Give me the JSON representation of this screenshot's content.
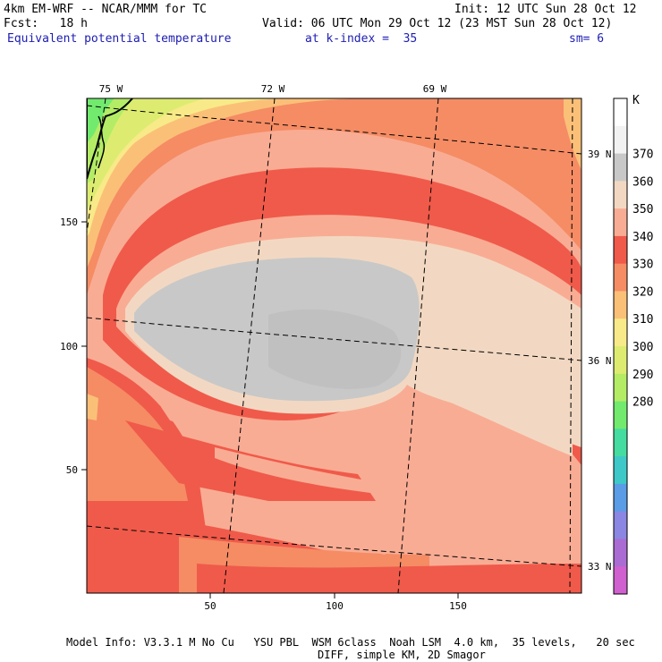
{
  "header": {
    "model_line": "4km EM-WRF -- NCAR/MMM for TC",
    "init_line": "Init: 12 UTC Sun 28 Oct 12",
    "fcst_line": "Fcst:   18 h",
    "valid_line": "Valid: 06 UTC Mon 29 Oct 12 (23 MST Sun 28 Oct 12)",
    "field_name": "Equivalent potential temperature",
    "level_text": "at k-index =  35",
    "smooth_text": "sm= 6"
  },
  "map": {
    "x_ticks": [
      "50",
      "100",
      "150"
    ],
    "y_ticks": [
      "150",
      "100",
      "50"
    ],
    "lon_labels": [
      "75 W",
      "72 W",
      "69 W"
    ],
    "lat_labels": [
      "39 N",
      "36 N",
      "33 N"
    ]
  },
  "colorbar": {
    "unit": "K",
    "labels": [
      "370",
      "360",
      "350",
      "340",
      "330",
      "320",
      "310",
      "300",
      "290",
      "280"
    ],
    "colors": [
      "#ffffff",
      "#f2f2f2",
      "#c8c8c8",
      "#f2d8c2",
      "#f9ac94",
      "#f05a4a",
      "#f58c64",
      "#fbc078",
      "#f8ea88",
      "#ddec70",
      "#b4ec66",
      "#72ea6e",
      "#44dca0",
      "#3ec8c8",
      "#5a9ce6",
      "#8a86e2",
      "#aa6cd2",
      "#d060d0"
    ]
  },
  "footer": {
    "line1": "Model Info: V3.3.1 M No Cu   YSU PBL  WSM 6class  Noah LSM  4.0 km,  35 levels,   20 sec",
    "line2": "DIFF, simple KM, 2D Smagor"
  }
}
